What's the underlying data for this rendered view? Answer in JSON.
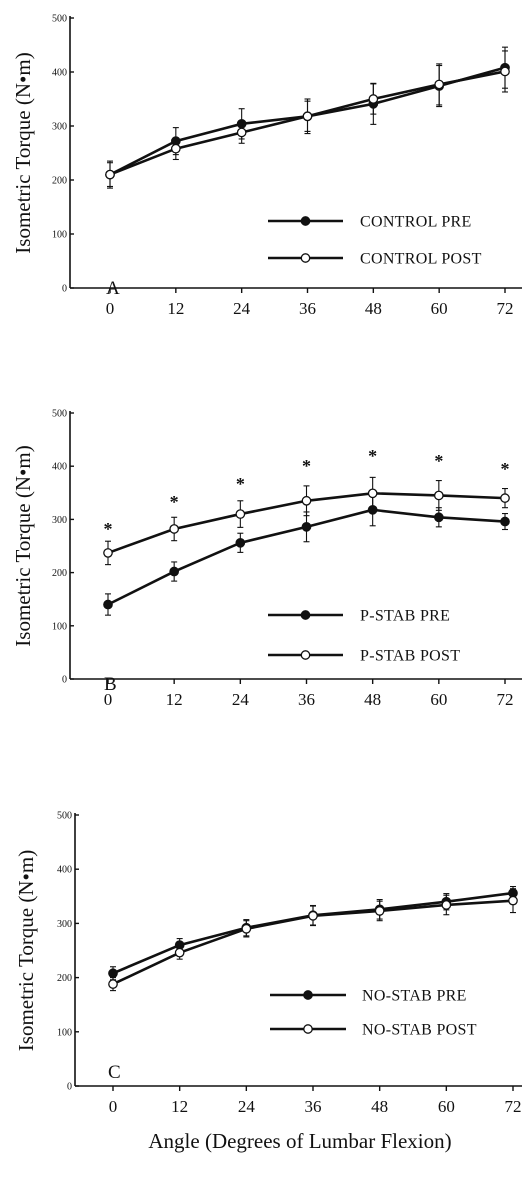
{
  "chart_data": [
    {
      "type": "line",
      "panel": "A",
      "ylabel": "Isometric Torque (N•m)",
      "xlabel": "",
      "x": [
        0,
        12,
        24,
        36,
        48,
        60,
        72
      ],
      "x_tick_labels": [
        "0",
        "12",
        "24",
        "36",
        "48",
        "60",
        "72"
      ],
      "y_ticks": [
        0,
        100,
        200,
        300,
        400,
        500
      ],
      "ylim": [
        0,
        500
      ],
      "legend_position": "bottom-right",
      "series": [
        {
          "name": "CONTROL PRE",
          "marker": "filled-circle",
          "values": [
            210,
            272,
            304,
            318,
            341,
            374,
            408
          ],
          "errors": [
            25,
            25,
            28,
            32,
            38,
            38,
            38
          ]
        },
        {
          "name": "CONTROL POST",
          "marker": "open-circle",
          "values": [
            210,
            258,
            288,
            318,
            350,
            377,
            401
          ],
          "errors": [
            22,
            20,
            20,
            28,
            28,
            38,
            38
          ]
        }
      ],
      "significance_markers": []
    },
    {
      "type": "line",
      "panel": "B",
      "ylabel": "Isometric Torque (N•m)",
      "xlabel": "",
      "x": [
        0,
        12,
        24,
        36,
        48,
        60,
        72
      ],
      "x_tick_labels": [
        "0",
        "12",
        "24",
        "36",
        "48",
        "60",
        "72"
      ],
      "y_ticks": [
        0,
        100,
        200,
        300,
        400,
        500
      ],
      "ylim": [
        0,
        500
      ],
      "legend_position": "bottom-right",
      "series": [
        {
          "name": "P-STAB PRE",
          "marker": "filled-circle",
          "values": [
            140,
            202,
            256,
            286,
            318,
            304,
            296
          ],
          "errors": [
            20,
            18,
            18,
            28,
            30,
            18,
            15
          ]
        },
        {
          "name": "P-STAB POST",
          "marker": "open-circle",
          "values": [
            237,
            282,
            310,
            335,
            349,
            345,
            340
          ],
          "errors": [
            22,
            22,
            25,
            28,
            30,
            28,
            18
          ]
        }
      ],
      "significance_markers": [
        "*",
        "*",
        "*",
        "*",
        "*",
        "*",
        "*"
      ]
    },
    {
      "type": "line",
      "panel": "C",
      "ylabel": "Isometric Torque (N•m)",
      "xlabel": "Angle (Degrees of Lumbar Flexion)",
      "x": [
        0,
        12,
        24,
        36,
        48,
        60,
        72
      ],
      "x_tick_labels": [
        "0",
        "12",
        "24",
        "36",
        "48",
        "60",
        "72"
      ],
      "y_ticks": [
        0,
        100,
        200,
        300,
        400,
        500
      ],
      "ylim": [
        0,
        500
      ],
      "legend_position": "bottom-right",
      "series": [
        {
          "name": "NO-STAB PRE",
          "marker": "filled-circle",
          "values": [
            208,
            260,
            292,
            315,
            326,
            340,
            356
          ],
          "errors": [
            12,
            12,
            15,
            18,
            18,
            15,
            12
          ]
        },
        {
          "name": "NO-STAB POST",
          "marker": "open-circle",
          "values": [
            188,
            246,
            290,
            314,
            323,
            334,
            342
          ],
          "errors": [
            12,
            12,
            15,
            18,
            18,
            18,
            22
          ]
        }
      ],
      "significance_markers": []
    }
  ]
}
